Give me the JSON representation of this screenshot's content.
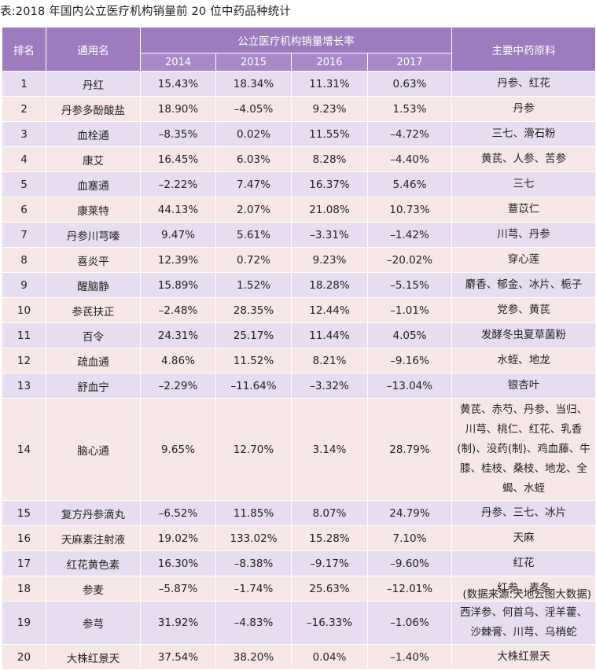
{
  "caption": "表:2018 年国内公立医疗机构销量前 20 位中药品种统计",
  "header": {
    "rank": "排名",
    "name": "通用名",
    "growth": "公立医疗机构销量增长率",
    "years": [
      "2014",
      "2015",
      "2016",
      "2017"
    ],
    "materials": "主要中药原料"
  },
  "rows": [
    {
      "rank": "1",
      "name": "丹红",
      "v": [
        "15.43%",
        "18.34%",
        "11.31%",
        "0.63%"
      ],
      "mat": "丹参、红花"
    },
    {
      "rank": "2",
      "name": "丹参多酚酸盐",
      "v": [
        "18.90%",
        "–4.05%",
        "9.23%",
        "1.53%"
      ],
      "mat": "丹参"
    },
    {
      "rank": "3",
      "name": "血栓通",
      "v": [
        "–8.35%",
        "0.02%",
        "11.55%",
        "–4.72%"
      ],
      "mat": "三七、滑石粉"
    },
    {
      "rank": "4",
      "name": "康艾",
      "v": [
        "16.45%",
        "6.03%",
        "8.28%",
        "–4.40%"
      ],
      "mat": "黄芪、人参、苦参"
    },
    {
      "rank": "5",
      "name": "血塞通",
      "v": [
        "–2.22%",
        "7.47%",
        "16.37%",
        "5.46%"
      ],
      "mat": "三七"
    },
    {
      "rank": "6",
      "name": "康莱特",
      "v": [
        "44.13%",
        "2.07%",
        "21.08%",
        "10.73%"
      ],
      "mat": "薏苡仁"
    },
    {
      "rank": "7",
      "name": "丹参川芎嗪",
      "v": [
        "9.47%",
        "5.61%",
        "–3.31%",
        "–1.42%"
      ],
      "mat": "川芎、丹参"
    },
    {
      "rank": "8",
      "name": "喜炎平",
      "v": [
        "12.39%",
        "0.72%",
        "9.23%",
        "–20.02%"
      ],
      "mat": "穿心莲"
    },
    {
      "rank": "9",
      "name": "醒脑静",
      "v": [
        "15.89%",
        "1.52%",
        "18.28%",
        "–5.15%"
      ],
      "mat": "麝香、郁金、冰片、栀子"
    },
    {
      "rank": "10",
      "name": "参芪扶正",
      "v": [
        "–2.48%",
        "28.35%",
        "12.44%",
        "–1.01%"
      ],
      "mat": "党参、黄芪"
    },
    {
      "rank": "11",
      "name": "百令",
      "v": [
        "24.31%",
        "25.17%",
        "11.44%",
        "4.05%"
      ],
      "mat": "发酵冬虫夏草菌粉"
    },
    {
      "rank": "12",
      "name": "疏血通",
      "v": [
        "4.86%",
        "11.52%",
        "8.21%",
        "–9.16%"
      ],
      "mat": "水蛭、地龙"
    },
    {
      "rank": "13",
      "name": "舒血宁",
      "v": [
        "–2.29%",
        "–11.64%",
        "–3.32%",
        "–13.04%"
      ],
      "mat": "银杏叶"
    },
    {
      "rank": "14",
      "name": "脑心通",
      "v": [
        "9.65%",
        "12.70%",
        "3.14%",
        "28.79%"
      ],
      "mat": "黄芪、赤芍、丹参、当归、川芎、桃仁、红花、乳香(制)、没药(制)、鸡血藤、牛膝、桂枝、桑枝、地龙、全蝎、水蛭"
    },
    {
      "rank": "15",
      "name": "复方丹参滴丸",
      "v": [
        "–6.52%",
        "11.85%",
        "8.07%",
        "24.79%"
      ],
      "mat": "丹参、三七、冰片"
    },
    {
      "rank": "16",
      "name": "天麻素注射液",
      "v": [
        "19.02%",
        "133.02%",
        "15.28%",
        "7.10%"
      ],
      "mat": "天麻"
    },
    {
      "rank": "17",
      "name": "红花黄色素",
      "v": [
        "16.30%",
        "–8.38%",
        "–9.17%",
        "–9.60%"
      ],
      "mat": "红花"
    },
    {
      "rank": "18",
      "name": "参麦",
      "v": [
        "–5.87%",
        "–1.74%",
        "25.63%",
        "–12.01%"
      ],
      "mat": "红参、麦冬"
    },
    {
      "rank": "19",
      "name": "参芎",
      "v": [
        "31.92%",
        "–4.83%",
        "–16.33%",
        "–1.06%"
      ],
      "mat": "西洋参、何首乌、淫羊藿、沙棘膏、川芎、乌梢蛇"
    },
    {
      "rank": "20",
      "name": "大株红景天",
      "v": [
        "37.54%",
        "38.20%",
        "0.04%",
        "–1.40%"
      ],
      "mat": "大株红景天"
    }
  ],
  "source": "(数据来源:天地云图大数据)"
}
